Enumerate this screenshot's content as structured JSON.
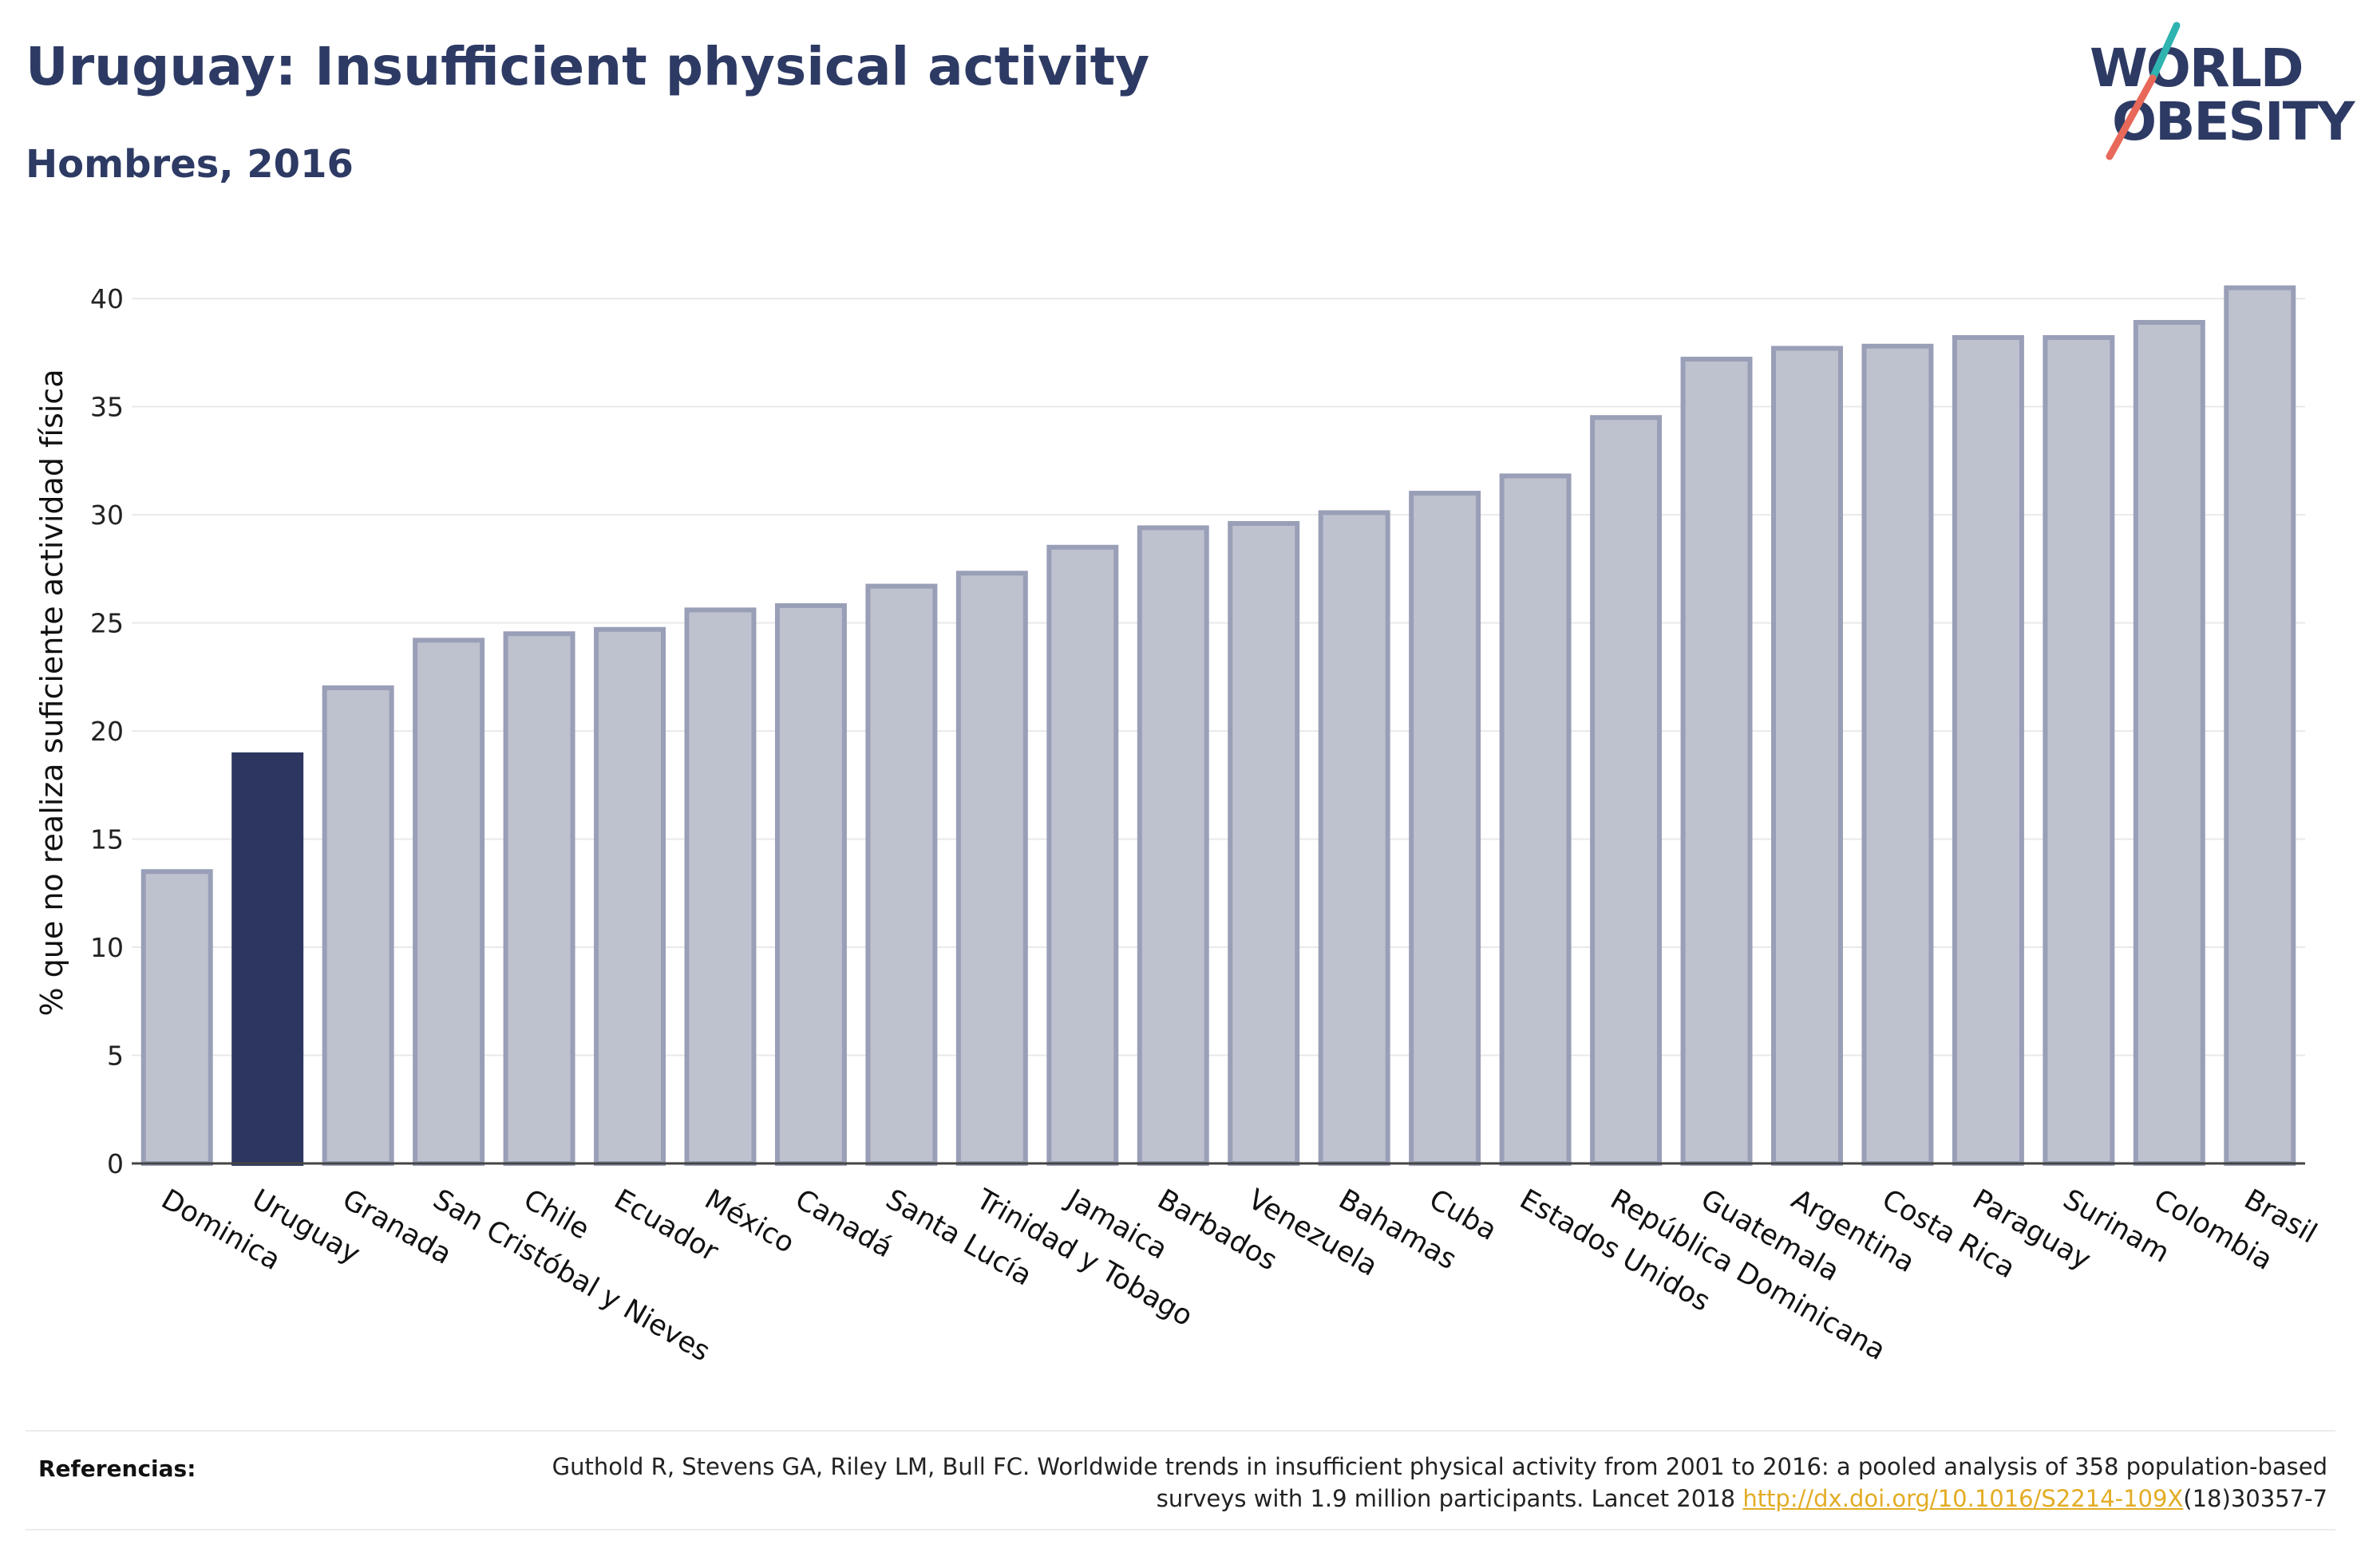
{
  "header": {
    "title": "Uruguay: Insufficient physical activity",
    "subtitle": "Hombres, 2016"
  },
  "logo": {
    "line1": "WORLD",
    "line2": "OBESITY",
    "accent_colors": [
      "#2fb3b0",
      "#e8685a"
    ]
  },
  "colors": {
    "bar": "#bec1ce",
    "bar_stroke": "#9a9fb8",
    "highlight": "#2c3660",
    "title": "#2d3a64",
    "link": "#e3ac25"
  },
  "chart_data": {
    "type": "bar",
    "title": "Uruguay: Insufficient physical activity",
    "subtitle": "Hombres, 2016",
    "xlabel": "",
    "ylabel": "% que no realiza suficiente actividad física",
    "ylim": [
      0,
      42
    ],
    "yticks": [
      0,
      5,
      10,
      15,
      20,
      25,
      30,
      35,
      40
    ],
    "grid": true,
    "highlight": "Uruguay",
    "categories": [
      "Dominica",
      "Uruguay",
      "Granada",
      "San Cristóbal y Nieves",
      "Chile",
      "Ecuador",
      "México",
      "Canadá",
      "Santa Lucía",
      "Trinidad y Tobago",
      "Jamaica",
      "Barbados",
      "Venezuela",
      "Bahamas",
      "Cuba",
      "Estados Unidos",
      "República Dominicana",
      "Guatemala",
      "Argentina",
      "Costa Rica",
      "Paraguay",
      "Surinam",
      "Colombia",
      "Brasil"
    ],
    "values": [
      13.5,
      18.9,
      22.0,
      24.2,
      24.5,
      24.7,
      25.6,
      25.8,
      26.7,
      27.3,
      28.5,
      29.4,
      29.6,
      30.1,
      31.0,
      31.8,
      34.5,
      37.2,
      37.7,
      37.8,
      38.2,
      38.2,
      38.9,
      40.5
    ]
  },
  "footer": {
    "label": "Referencias:",
    "text_part1": "Guthold R, Stevens GA, Riley LM, Bull FC. Worldwide trends in insufficient physical activity from 2001 to 2016: a pooled analysis of 358 population-based surveys with 1.9 million participants. Lancet 2018 ",
    "link": "http://dx.doi.org/10.1016/S2214-109X",
    "text_part2": "(18)30357-7"
  }
}
